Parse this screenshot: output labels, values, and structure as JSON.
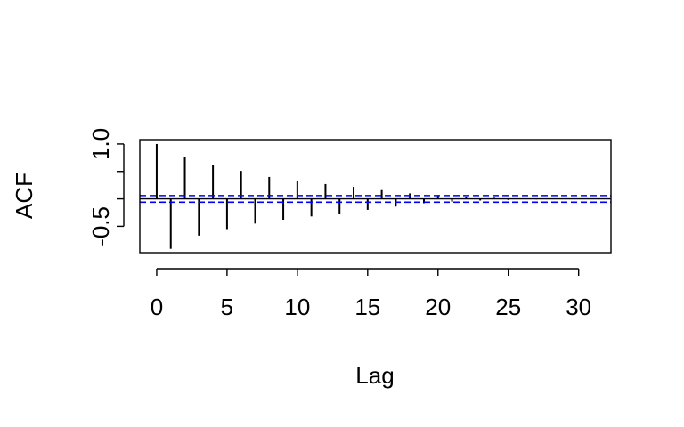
{
  "chart_data": {
    "type": "bar",
    "title": "",
    "xlabel": "Lag",
    "ylabel": "ACF",
    "x_ticks": [
      0,
      5,
      10,
      15,
      20,
      25,
      30
    ],
    "x_tick_labels": [
      "0",
      "5",
      "10",
      "15",
      "20",
      "25",
      "30"
    ],
    "y_ticks": [
      -0.5,
      0,
      0.5,
      1.0
    ],
    "y_tick_labels": [
      "-0.5",
      "",
      "",
      "1.0"
    ],
    "xlim": [
      -1.2,
      32.3
    ],
    "ylim": [
      -0.98,
      1.08
    ],
    "confidence_band": 0.06,
    "grid": false,
    "colors": {
      "spikes": "#000000",
      "zero_line": "#000000",
      "confidence": "#0000ff"
    },
    "lags": [
      0,
      1,
      2,
      3,
      4,
      5,
      6,
      7,
      8,
      9,
      10,
      11,
      12,
      13,
      14,
      15,
      16,
      17,
      18,
      19,
      20,
      21,
      22,
      23,
      24,
      25,
      26,
      27,
      28,
      29,
      30
    ],
    "values": [
      1.0,
      -0.91,
      0.76,
      -0.67,
      0.62,
      -0.55,
      0.51,
      -0.45,
      0.4,
      -0.38,
      0.33,
      -0.32,
      0.27,
      -0.27,
      0.22,
      -0.2,
      0.16,
      -0.14,
      0.1,
      -0.08,
      0.06,
      -0.05,
      0.04,
      -0.03,
      0.02,
      -0.02,
      0.01,
      -0.01,
      0.01,
      0.0,
      0.0
    ]
  }
}
